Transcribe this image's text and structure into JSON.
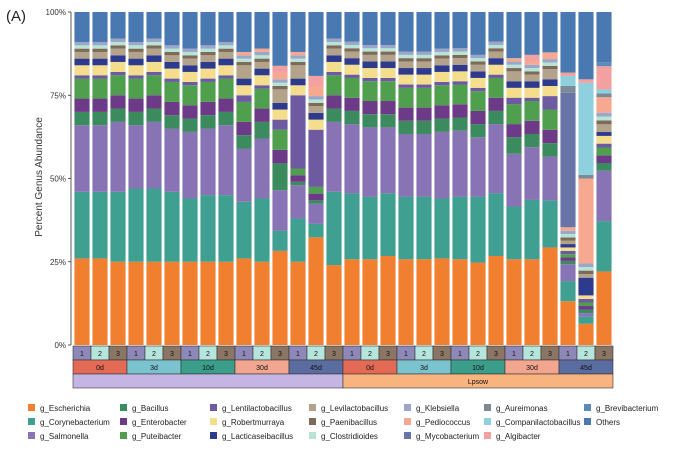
{
  "chart_data": {
    "type": "bar",
    "stacked": true,
    "panel_label": "(A)",
    "title": "",
    "xlabel": "",
    "ylabel": "Percent Genus Abundance",
    "ylim": [
      0,
      100
    ],
    "yticks": [
      "0%",
      "25%",
      "50%",
      "75%",
      "100%"
    ],
    "grid": false,
    "legend_position": "bottom",
    "samples": [
      {
        "rep": "1",
        "day": "0d",
        "group": ""
      },
      {
        "rep": "2",
        "day": "0d",
        "group": ""
      },
      {
        "rep": "3",
        "day": "0d",
        "group": ""
      },
      {
        "rep": "1",
        "day": "3d",
        "group": ""
      },
      {
        "rep": "2",
        "day": "3d",
        "group": ""
      },
      {
        "rep": "3",
        "day": "3d",
        "group": ""
      },
      {
        "rep": "1",
        "day": "10d",
        "group": ""
      },
      {
        "rep": "2",
        "day": "10d",
        "group": ""
      },
      {
        "rep": "3",
        "day": "10d",
        "group": ""
      },
      {
        "rep": "1",
        "day": "30d",
        "group": ""
      },
      {
        "rep": "2",
        "day": "30d",
        "group": ""
      },
      {
        "rep": "3",
        "day": "30d",
        "group": ""
      },
      {
        "rep": "1",
        "day": "45d",
        "group": ""
      },
      {
        "rep": "2",
        "day": "45d",
        "group": ""
      },
      {
        "rep": "3",
        "day": "45d",
        "group": ""
      },
      {
        "rep": "1",
        "day": "0d",
        "group": "Lpsow"
      },
      {
        "rep": "2",
        "day": "0d",
        "group": "Lpsow"
      },
      {
        "rep": "3",
        "day": "0d",
        "group": "Lpsow"
      },
      {
        "rep": "1",
        "day": "3d",
        "group": "Lpsow"
      },
      {
        "rep": "2",
        "day": "3d",
        "group": "Lpsow"
      },
      {
        "rep": "3",
        "day": "3d",
        "group": "Lpsow"
      },
      {
        "rep": "1",
        "day": "10d",
        "group": "Lpsow"
      },
      {
        "rep": "2",
        "day": "10d",
        "group": "Lpsow"
      },
      {
        "rep": "3",
        "day": "10d",
        "group": "Lpsow"
      },
      {
        "rep": "1",
        "day": "30d",
        "group": "Lpsow"
      },
      {
        "rep": "2",
        "day": "30d",
        "group": "Lpsow"
      },
      {
        "rep": "3",
        "day": "30d",
        "group": "Lpsow"
      },
      {
        "rep": "1",
        "day": "45d",
        "group": "Lpsow"
      },
      {
        "rep": "2",
        "day": "45d",
        "group": "Lpsow"
      },
      {
        "rep": "3",
        "day": "45d",
        "group": "Lpsow"
      }
    ],
    "annotation_rows": {
      "replicate_colors": {
        "1": "#8e88b8",
        "2": "#b5e5dc",
        "3": "#8b7564"
      },
      "day_groups": [
        {
          "label": "0d",
          "color": "#e36a55"
        },
        {
          "label": "3d",
          "color": "#7cc3d0"
        },
        {
          "label": "10d",
          "color": "#3a9e8a"
        },
        {
          "label": "30d",
          "color": "#f3a68f"
        },
        {
          "label": "45d",
          "color": "#5a6ca0"
        },
        {
          "label": "0d",
          "color": "#e36a55"
        },
        {
          "label": "3d",
          "color": "#7cc3d0"
        },
        {
          "label": "10d",
          "color": "#3a9e8a"
        },
        {
          "label": "30d",
          "color": "#f3a68f"
        },
        {
          "label": "45d",
          "color": "#5a6ca0"
        }
      ],
      "treatment_groups": [
        {
          "label": "",
          "color": "#c5b5e4"
        },
        {
          "label": "Lpsow",
          "color": "#f8b37e"
        }
      ]
    },
    "series": [
      {
        "name": "g_Escherichia",
        "color": "#f07f30",
        "values": [
          26,
          26,
          25,
          25,
          25,
          25,
          25,
          25,
          25,
          26,
          25,
          28,
          25,
          32,
          24,
          26,
          26,
          27,
          26,
          26,
          26,
          26,
          25,
          27,
          26,
          26,
          29,
          13,
          6,
          19
        ]
      },
      {
        "name": "g_Corynebacterium",
        "color": "#3f9f90",
        "values": [
          20,
          20,
          21,
          22,
          22,
          21,
          19,
          20,
          20,
          17,
          19,
          6,
          13,
          4,
          22,
          20,
          19,
          19,
          19,
          19,
          18,
          19,
          20,
          19,
          16,
          18,
          14,
          6,
          2,
          13
        ]
      },
      {
        "name": "g_Salmonella",
        "color": "#8873b5",
        "values": [
          20,
          20,
          21,
          19,
          20,
          19,
          20,
          20,
          21,
          16,
          18,
          12,
          10,
          6,
          21,
          21,
          21,
          20,
          19,
          19,
          20,
          20,
          18,
          21,
          16,
          16,
          13,
          5,
          1,
          13
        ]
      },
      {
        "name": "g_Bacillus",
        "color": "#3c8b5f",
        "values": [
          4,
          4,
          4,
          4,
          4,
          4,
          4,
          4,
          4,
          4,
          5,
          8,
          1,
          1,
          4,
          4,
          4,
          4,
          4,
          4,
          4,
          4,
          4,
          4,
          5,
          4,
          4,
          1,
          1,
          2
        ]
      },
      {
        "name": "g_Enterobacter",
        "color": "#6c3a86",
        "values": [
          4,
          4,
          4,
          4,
          4,
          4,
          4,
          4,
          4,
          4,
          4,
          4,
          2,
          2,
          4,
          4,
          4,
          4,
          4,
          4,
          4,
          4,
          4,
          4,
          4,
          4,
          4,
          1,
          1,
          2
        ]
      },
      {
        "name": "g_Puteibacter",
        "color": "#4f9f4f",
        "values": [
          6,
          6,
          6,
          6,
          6,
          6,
          6,
          6,
          6,
          6,
          6,
          6,
          2,
          2,
          6,
          6,
          6,
          6,
          6,
          6,
          6,
          6,
          6,
          6,
          6,
          6,
          6,
          1,
          1,
          2
        ]
      },
      {
        "name": "g_Lentilactobacillus",
        "color": "#6d5aa1",
        "values": [
          1,
          1,
          1,
          1,
          1,
          1,
          1,
          1,
          1,
          2,
          1,
          3,
          22,
          17,
          1,
          1,
          1,
          1,
          1,
          1,
          1,
          1,
          1,
          1,
          2,
          1,
          4,
          1,
          1,
          1
        ]
      },
      {
        "name": "g_Robertmurraya",
        "color": "#f4dd8c",
        "values": [
          3,
          3,
          3,
          3,
          3,
          3,
          3,
          3,
          3,
          3,
          3,
          3,
          3,
          3,
          3,
          3,
          3,
          3,
          3,
          3,
          3,
          3,
          3,
          3,
          3,
          3,
          3,
          1,
          1,
          2
        ]
      },
      {
        "name": "g_Lacticaseibacillus",
        "color": "#2e3a8c",
        "values": [
          2,
          2,
          2,
          2,
          2,
          2,
          2,
          2,
          2,
          2,
          2,
          2,
          2,
          2,
          2,
          2,
          2,
          2,
          2,
          2,
          2,
          2,
          2,
          2,
          2,
          2,
          2,
          1,
          5,
          1
        ]
      },
      {
        "name": "g_Levilactobacillus",
        "color": "#b3a38a",
        "values": [
          2,
          2,
          2,
          2,
          2,
          2,
          2,
          2,
          2,
          4,
          2,
          4,
          4,
          2,
          2,
          2,
          2,
          2,
          2,
          2,
          2,
          2,
          2,
          2,
          3,
          2,
          3,
          1,
          1,
          2
        ]
      },
      {
        "name": "g_Paenibacillus",
        "color": "#7d6a58",
        "values": [
          1,
          1,
          1,
          1,
          1,
          1,
          1,
          1,
          1,
          1,
          1,
          1,
          1,
          1,
          1,
          1,
          1,
          1,
          1,
          1,
          1,
          1,
          1,
          1,
          1,
          1,
          1,
          1,
          1,
          1
        ]
      },
      {
        "name": "g_Clostridioides",
        "color": "#b7e4d4",
        "values": [
          1,
          1,
          1,
          1,
          1,
          1,
          1,
          1,
          1,
          1,
          1,
          1,
          1,
          1,
          1,
          1,
          1,
          1,
          1,
          1,
          1,
          1,
          1,
          1,
          1,
          1,
          1,
          1,
          1,
          1
        ]
      },
      {
        "name": "g_Klebsiella",
        "color": "#9aa7c8",
        "values": [
          1,
          1,
          1,
          1,
          1,
          1,
          1,
          1,
          1,
          1,
          1,
          1,
          1,
          1,
          1,
          1,
          1,
          1,
          1,
          1,
          1,
          1,
          1,
          1,
          1,
          1,
          1,
          1,
          1,
          1
        ]
      },
      {
        "name": "g_Pediococcus",
        "color": "#f6a990",
        "values": [
          0,
          0,
          0,
          0,
          0,
          0,
          0,
          0,
          0,
          1,
          1,
          2,
          1,
          3,
          0,
          0,
          0,
          0,
          0,
          0,
          0,
          0,
          0,
          0,
          1,
          1,
          2,
          1,
          24,
          4
        ]
      },
      {
        "name": "g_Mycobacterium",
        "color": "#6875a6",
        "values": [
          0,
          0,
          0,
          0,
          0,
          0,
          0,
          0,
          0,
          0,
          0,
          0,
          0,
          0,
          0,
          0,
          0,
          0,
          0,
          0,
          0,
          0,
          0,
          0,
          0,
          0,
          0,
          40,
          0,
          0
        ]
      },
      {
        "name": "g_Aureimonas",
        "color": "#7a8a96",
        "values": [
          0,
          0,
          0,
          0,
          0,
          0,
          0,
          0,
          0,
          0,
          0,
          0,
          0,
          0,
          0,
          0,
          0,
          0,
          0,
          0,
          0,
          0,
          0,
          0,
          0,
          0,
          0,
          2,
          1,
          1
        ]
      },
      {
        "name": "g_Companilactobacillus",
        "color": "#8fd0de",
        "values": [
          0,
          0,
          0,
          0,
          0,
          0,
          0,
          0,
          0,
          0,
          0,
          0,
          0,
          0,
          0,
          0,
          0,
          0,
          0,
          0,
          0,
          0,
          0,
          0,
          0,
          0,
          0,
          3,
          26,
          1
        ]
      },
      {
        "name": "g_Algibacter",
        "color": "#f2a0a0",
        "values": [
          0,
          0,
          0,
          0,
          0,
          0,
          0,
          0,
          0,
          0,
          0,
          2,
          0,
          3,
          0,
          0,
          0,
          0,
          0,
          0,
          0,
          0,
          0,
          0,
          0,
          2,
          0,
          1,
          1,
          6
        ]
      },
      {
        "name": "g_Brevibacterium",
        "color": "#5b8ab8",
        "values": [
          0,
          0,
          0,
          0,
          0,
          0,
          0,
          0,
          0,
          0,
          0,
          0,
          0,
          0,
          0,
          0,
          0,
          0,
          0,
          0,
          0,
          0,
          0,
          0,
          0,
          0,
          0,
          0,
          0,
          1
        ]
      },
      {
        "name": "Others",
        "color": "#4a78b0",
        "values": [
          9,
          9,
          8,
          9,
          8,
          10,
          11,
          10,
          9,
          12,
          11,
          16,
          12,
          19,
          8,
          9,
          10,
          10,
          12,
          12,
          11,
          11,
          13,
          9,
          14,
          13,
          12,
          18,
          19,
          13
        ]
      }
    ]
  }
}
